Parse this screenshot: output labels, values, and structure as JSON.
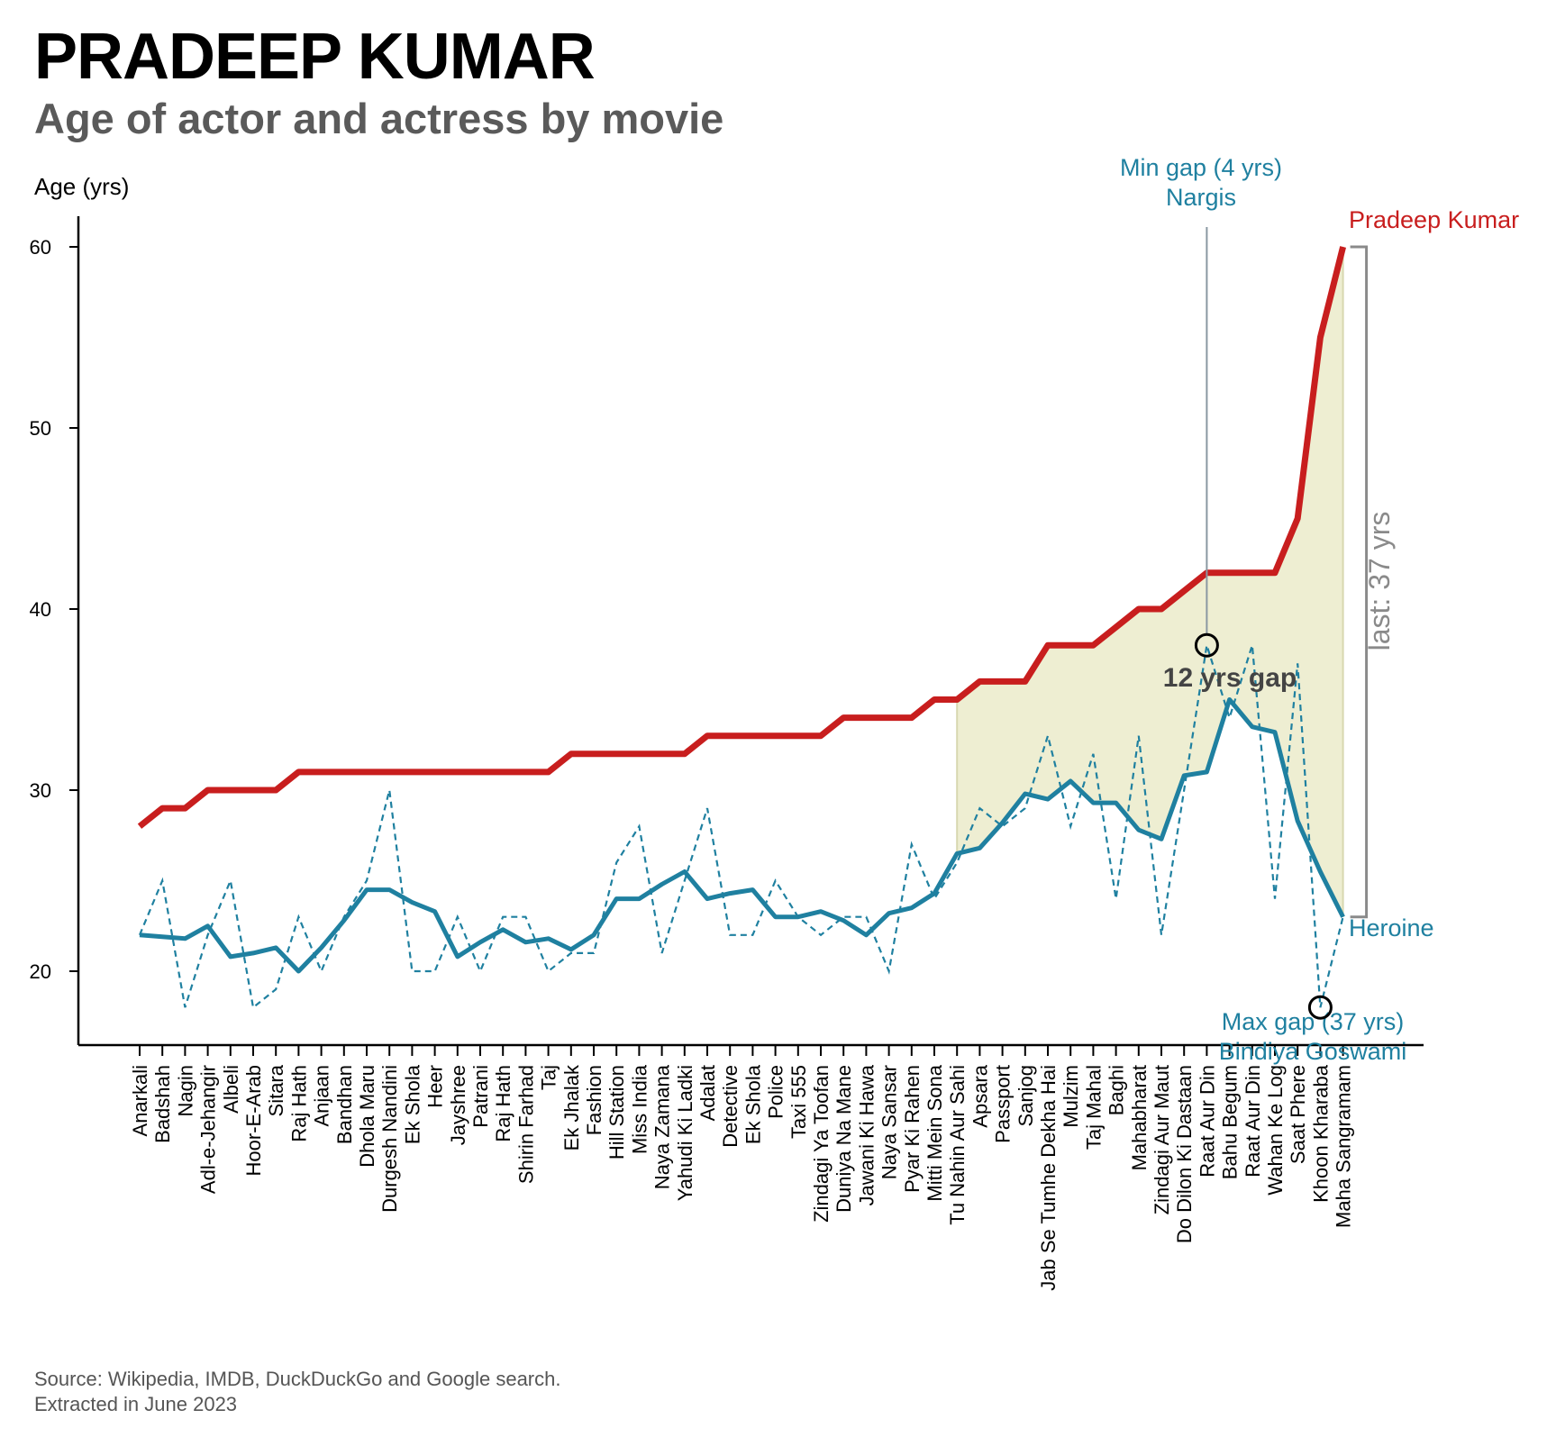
{
  "title": "PRADEEP KUMAR",
  "subtitle": "Age of actor and actress by movie",
  "source": {
    "line1": "Source: Wikipedia, IMDB, DuckDuckGo and Google search.",
    "line2": "Extracted in June 2023"
  },
  "colors": {
    "actor": "#c81e1e",
    "heroine": "#1f80a0",
    "gap_fill": "#eeeed2",
    "bracket": "#8a8a8a",
    "axis": "#000000"
  },
  "chart_data": {
    "type": "line",
    "ylabel": "Age (yrs)",
    "ylim": [
      16,
      62
    ],
    "yticks": [
      20,
      30,
      40,
      50,
      60
    ],
    "categories": [
      "Anarkali",
      "Badshah",
      "Nagin",
      "Adl-e-Jehangir",
      "Albeli",
      "Hoor-E-Arab",
      "Sitara",
      "Raj Hath",
      "Anjaan",
      "Bandhan",
      "Dhola Maru",
      "Durgesh Nandini",
      "Ek Shola",
      "Heer",
      "Jayshree",
      "Patrani",
      "Raj Hath",
      "Shirin Farhad",
      "Taj",
      "Ek Jhalak",
      "Fashion",
      "Hill Station",
      "Miss India",
      "Naya Zamana",
      "Yahudi Ki Ladki",
      "Adalat",
      "Detective",
      "Ek Shola",
      "Police",
      "Taxi 555",
      "Zindagi Ya Toofan",
      "Duniya Na Mane",
      "Jawani Ki Hawa",
      "Naya Sansar",
      "Pyar Ki Rahen",
      "Mitti Mein Sona",
      "Tu Nahin Aur Sahi",
      "Apsara",
      "Passport",
      "Sanjog",
      "Jab Se Tumhe Dekha Hai",
      "Mulzim",
      "Taj Mahal",
      "Baghi",
      "Mahabharat",
      "Zindagi Aur Maut",
      "Do Dilon Ki Dastaan",
      "Raat Aur Din",
      "Bahu Begum",
      "Raat Aur Din",
      "Wahan Ke Log",
      "Saat Phere",
      "Khoon Kharaba",
      "Maha Sangramam"
    ],
    "series": [
      {
        "name": "Pradeep Kumar",
        "style": "solid-thick",
        "values": [
          28,
          29,
          29,
          30,
          30,
          30,
          30,
          31,
          31,
          31,
          31,
          31,
          31,
          31,
          31,
          31,
          31,
          31,
          31,
          32,
          32,
          32,
          32,
          32,
          32,
          33,
          33,
          33,
          33,
          33,
          33,
          34,
          34,
          34,
          34,
          35,
          35,
          36,
          36,
          36,
          38,
          38,
          38,
          39,
          40,
          40,
          41,
          42,
          42,
          42,
          42,
          45,
          55,
          60
        ]
      },
      {
        "name": "Heroine",
        "style": "solid-thick",
        "values": [
          22,
          21.9,
          21.8,
          22.5,
          20.8,
          21,
          21.3,
          20,
          21.3,
          22.8,
          24.5,
          24.5,
          23.8,
          23.3,
          20.8,
          21.6,
          22.3,
          21.6,
          21.8,
          21.2,
          22,
          24,
          24,
          24.8,
          25.5,
          24,
          24.3,
          24.5,
          23,
          23,
          23.3,
          22.8,
          22,
          23.2,
          23.5,
          24.3,
          26.5,
          26.8,
          28.2,
          29.8,
          29.5,
          30.5,
          29.3,
          29.3,
          27.8,
          27.3,
          30.8,
          31,
          35,
          33.5,
          33.2,
          28.3,
          25.5,
          23
        ]
      },
      {
        "name": "",
        "style": "dashed-thin",
        "values": [
          22,
          25,
          18,
          22,
          25,
          18,
          19,
          23,
          20,
          23,
          25,
          30,
          20,
          20,
          23,
          20,
          23,
          23,
          20,
          21,
          21,
          26,
          28,
          21,
          25,
          29,
          22,
          22,
          25,
          23,
          22,
          23,
          23,
          20,
          27,
          24,
          26,
          29,
          28,
          29,
          33,
          28,
          32,
          24,
          33,
          22,
          30,
          38,
          34,
          38,
          24,
          37,
          18,
          23
        ]
      }
    ],
    "gap_shade_from_index": 36,
    "annotations": {
      "min_gap": {
        "line1": "Min gap (4 yrs)",
        "line2": "Nargis",
        "index": 47,
        "age": 38
      },
      "max_gap": {
        "line1": "Max gap (37 yrs)",
        "line2": "Bindiya Goswami",
        "index": 52,
        "age": 18
      },
      "gap_label": "12 yrs gap",
      "last_gap": "last: 37 yrs",
      "actor_label": "Pradeep Kumar",
      "heroine_label": "Heroine"
    }
  }
}
